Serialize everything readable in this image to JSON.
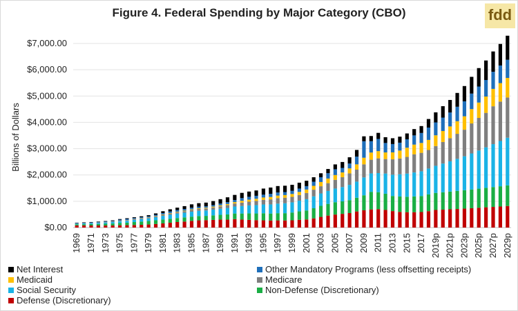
{
  "brand": {
    "logo_text": "fdd"
  },
  "chart_data": {
    "type": "bar",
    "stacked": true,
    "title": "Figure 4. Federal Spending by Major Category (CBO)",
    "xlabel": "",
    "ylabel": "Billions of Dollars",
    "ylim": [
      0,
      7000
    ],
    "yticks": [
      "$0.00",
      "$1,000.00",
      "$2,000.00",
      "$3,000.00",
      "$4,000.00",
      "$5,000.00",
      "$6,000.00",
      "$7,000.00"
    ],
    "grid": true,
    "legend_placement": "bottom",
    "categories": [
      "1969",
      "1970",
      "1971",
      "1972",
      "1973",
      "1974",
      "1975",
      "1976",
      "1977",
      "1978",
      "1979",
      "1980",
      "1981",
      "1982",
      "1983",
      "1984",
      "1985",
      "1986",
      "1987",
      "1988",
      "1989",
      "1990",
      "1991",
      "1992",
      "1993",
      "1994",
      "1995",
      "1996",
      "1997",
      "1998",
      "1999",
      "2000",
      "2001",
      "2002",
      "2003",
      "2004",
      "2005",
      "2006",
      "2007",
      "2008",
      "2009",
      "2010",
      "2011",
      "2012",
      "2013",
      "2014",
      "2015",
      "2016",
      "2017",
      "2018",
      "2019p",
      "2020p",
      "2021p",
      "2022p",
      "2023p",
      "2024p",
      "2025p",
      "2026p",
      "2027p",
      "2028p",
      "2029p"
    ],
    "series": [
      {
        "name": "Defense (Discretionary)",
        "color": "#c00000",
        "values": [
          82,
          82,
          79,
          79,
          77,
          80,
          87,
          90,
          97,
          104,
          116,
          134,
          158,
          185,
          210,
          227,
          253,
          274,
          282,
          290,
          304,
          300,
          320,
          303,
          292,
          282,
          274,
          266,
          272,
          270,
          275,
          295,
          306,
          349,
          405,
          455,
          494,
          521,
          551,
          612,
          656,
          689,
          699,
          670,
          626,
          596,
          585,
          584,
          590,
          623,
          669,
          681,
          694,
          706,
          720,
          735,
          752,
          770,
          785,
          800,
          820
        ]
      },
      {
        "name": "Non-Defense (Discretionary)",
        "color": "#1aae44",
        "values": [
          40,
          44,
          51,
          58,
          66,
          74,
          89,
          95,
          112,
          125,
          132,
          141,
          149,
          147,
          152,
          160,
          162,
          165,
          162,
          174,
          180,
          200,
          214,
          231,
          247,
          254,
          270,
          267,
          275,
          277,
          296,
          320,
          343,
          385,
          422,
          445,
          470,
          475,
          491,
          522,
          571,
          669,
          647,
          616,
          575,
          585,
          585,
          600,
          610,
          639,
          649,
          662,
          674,
          688,
          700,
          713,
          727,
          741,
          756,
          770,
          785
        ]
      },
      {
        "name": "Social Security",
        "color": "#1ab3e6",
        "values": [
          27,
          30,
          35,
          39,
          48,
          55,
          63,
          72,
          82,
          92,
          102,
          117,
          137,
          154,
          168,
          176,
          186,
          196,
          205,
          217,
          230,
          246,
          266,
          285,
          302,
          317,
          333,
          347,
          362,
          376,
          387,
          406,
          429,
          452,
          470,
          491,
          519,
          544,
          581,
          612,
          678,
          701,
          725,
          768,
          808,
          845,
          882,
          910,
          939,
          982,
          1030,
          1090,
          1150,
          1220,
          1290,
          1370,
          1450,
          1540,
          1630,
          1720,
          1810
        ]
      },
      {
        "name": "Medicare",
        "color": "#7f7f7f",
        "values": [
          6,
          7,
          7,
          8,
          9,
          11,
          14,
          17,
          21,
          24,
          28,
          34,
          41,
          49,
          55,
          61,
          69,
          74,
          79,
          85,
          94,
          107,
          114,
          129,
          143,
          159,
          177,
          191,
          210,
          211,
          210,
          216,
          237,
          253,
          274,
          297,
          332,
          375,
          436,
          456,
          499,
          520,
          560,
          551,
          585,
          600,
          634,
          692,
          702,
          705,
          750,
          820,
          880,
          950,
          1010,
          1140,
          1240,
          1310,
          1440,
          1500,
          1530
        ]
      },
      {
        "name": "Medicaid",
        "color": "#ffc000",
        "values": [
          2,
          3,
          3,
          5,
          5,
          6,
          7,
          9,
          10,
          11,
          12,
          14,
          17,
          17,
          19,
          20,
          23,
          25,
          27,
          31,
          35,
          41,
          53,
          68,
          76,
          82,
          89,
          92,
          96,
          101,
          108,
          118,
          130,
          147,
          161,
          176,
          182,
          181,
          191,
          201,
          251,
          273,
          275,
          251,
          265,
          301,
          350,
          368,
          375,
          383,
          409,
          418,
          447,
          479,
          510,
          545,
          583,
          620,
          661,
          702,
          744
        ]
      },
      {
        "name": "Other Mandatory Programs (less offsetting receipts)",
        "color": "#1f6fba",
        "values": [
          15,
          18,
          22,
          25,
          27,
          28,
          40,
          45,
          40,
          38,
          38,
          45,
          50,
          58,
          63,
          60,
          60,
          58,
          55,
          58,
          67,
          72,
          80,
          104,
          110,
          114,
          107,
          118,
          119,
          115,
          120,
          128,
          130,
          156,
          179,
          203,
          220,
          170,
          185,
          295,
          627,
          432,
          464,
          359,
          316,
          300,
          319,
          350,
          380,
          470,
          490,
          510,
          530,
          550,
          570,
          590,
          610,
          630,
          650,
          670,
          690
        ]
      },
      {
        "name": "Net Interest",
        "color": "#000000",
        "values": [
          13,
          14,
          14,
          16,
          17,
          21,
          23,
          27,
          30,
          35,
          43,
          53,
          69,
          85,
          90,
          111,
          130,
          136,
          139,
          152,
          169,
          184,
          194,
          199,
          199,
          203,
          232,
          241,
          244,
          241,
          230,
          223,
          206,
          171,
          153,
          160,
          184,
          227,
          237,
          253,
          187,
          196,
          230,
          220,
          221,
          229,
          223,
          240,
          263,
          325,
          383,
          434,
          476,
          525,
          580,
          637,
          701,
          741,
          773,
          818,
          915
        ]
      }
    ]
  }
}
